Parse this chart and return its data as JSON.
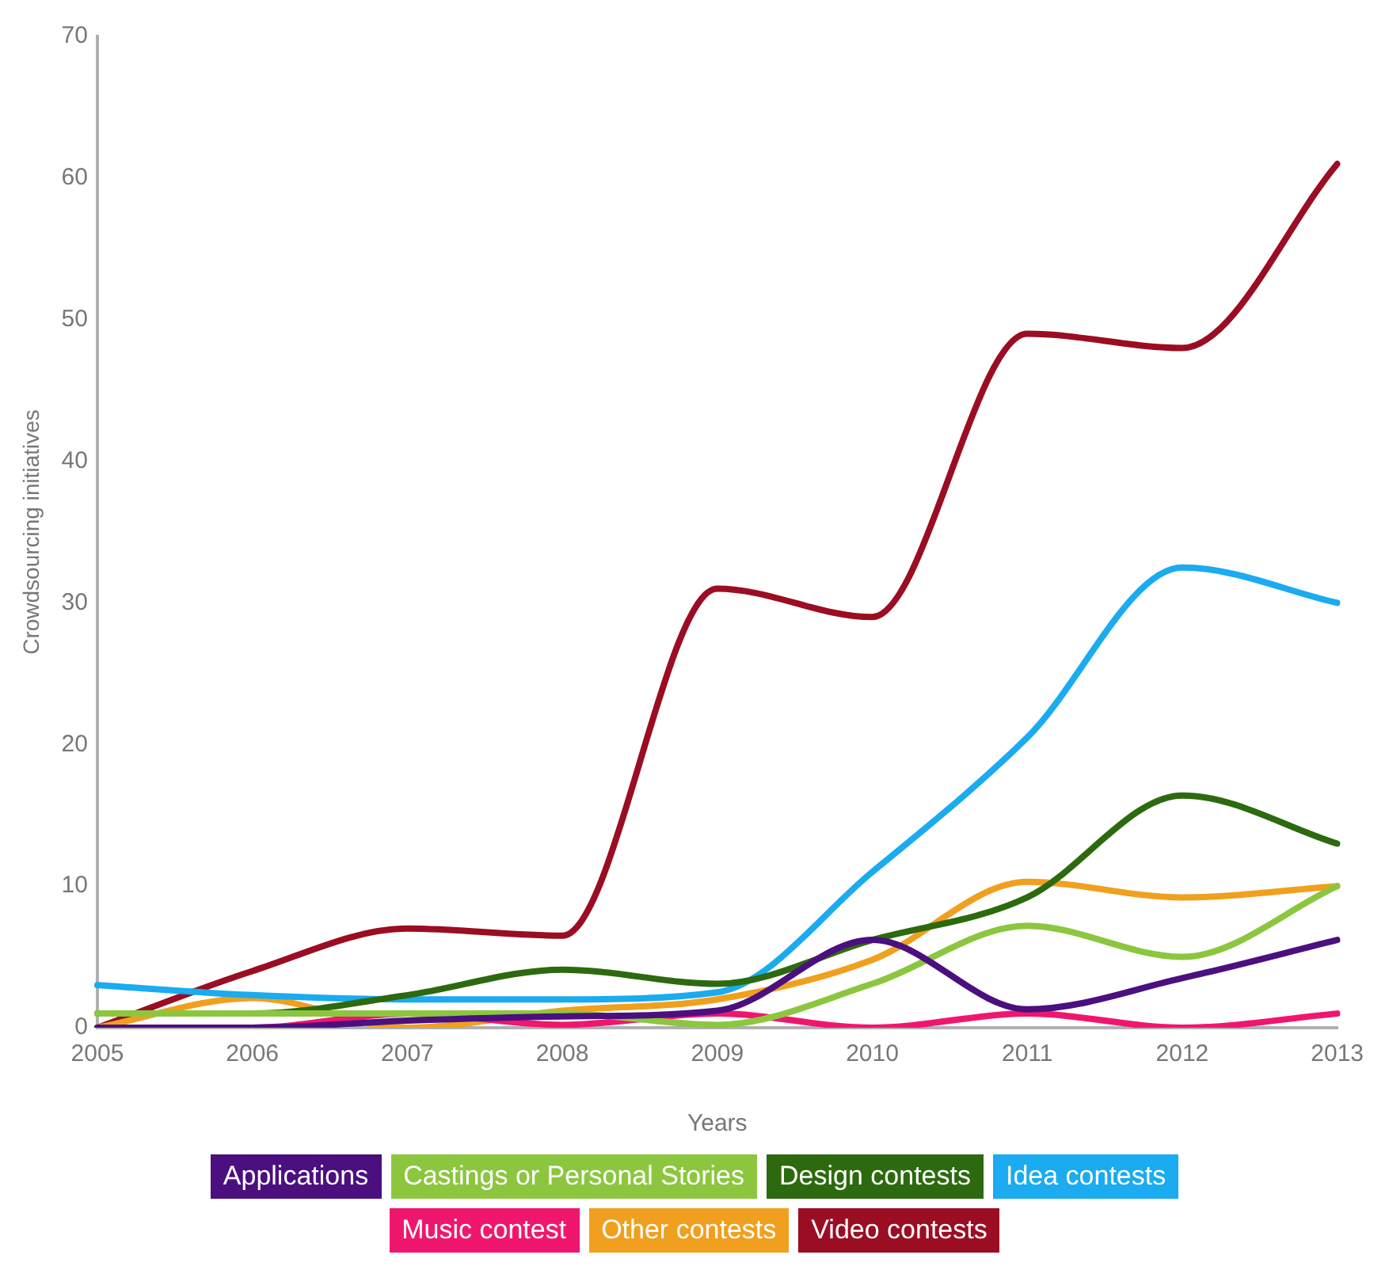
{
  "chart_data": {
    "type": "line",
    "xlabel": "Years",
    "ylabel": "Crowdsourcing initiatives",
    "categories": [
      "2005",
      "2006",
      "2007",
      "2008",
      "2009",
      "2010",
      "2011",
      "2012",
      "2013"
    ],
    "ylim": [
      0,
      70
    ],
    "yticks": [
      0,
      10,
      20,
      30,
      40,
      50,
      60,
      70
    ],
    "grid": false,
    "legend": "bottom",
    "marker": "none",
    "line_style": "solid",
    "series": [
      {
        "name": "Applications",
        "color": "#4b0f7f",
        "values": [
          0,
          0,
          0.5,
          0.8,
          1.2,
          6.2,
          1.3,
          3.5,
          6.2
        ]
      },
      {
        "name": "Castings or Personal Stories",
        "color": "#8cc63f",
        "values": [
          1,
          1,
          1,
          1,
          0.2,
          3.1,
          7.2,
          5,
          10
        ]
      },
      {
        "name": "Design contests",
        "color": "#2d6a0f",
        "values": [
          1,
          1,
          2.3,
          4.1,
          3.1,
          6.2,
          9.2,
          16.4,
          13
        ]
      },
      {
        "name": "Idea contests",
        "color": "#1aabf0",
        "values": [
          3,
          2.3,
          2,
          2,
          2.5,
          11,
          20.5,
          32.5,
          30
        ]
      },
      {
        "name": "Music contest",
        "color": "#f0166e",
        "values": [
          0,
          0,
          1,
          0.2,
          1,
          0,
          1,
          0,
          1
        ]
      },
      {
        "name": "Other contests",
        "color": "#f0a01e",
        "values": [
          0,
          2.1,
          0,
          1.2,
          2,
          4.8,
          10.3,
          9.2,
          10
        ]
      },
      {
        "name": "Video contests",
        "color": "#9b0d22",
        "values": [
          0,
          4,
          7,
          6.5,
          31,
          29,
          49,
          48,
          61
        ]
      }
    ]
  }
}
